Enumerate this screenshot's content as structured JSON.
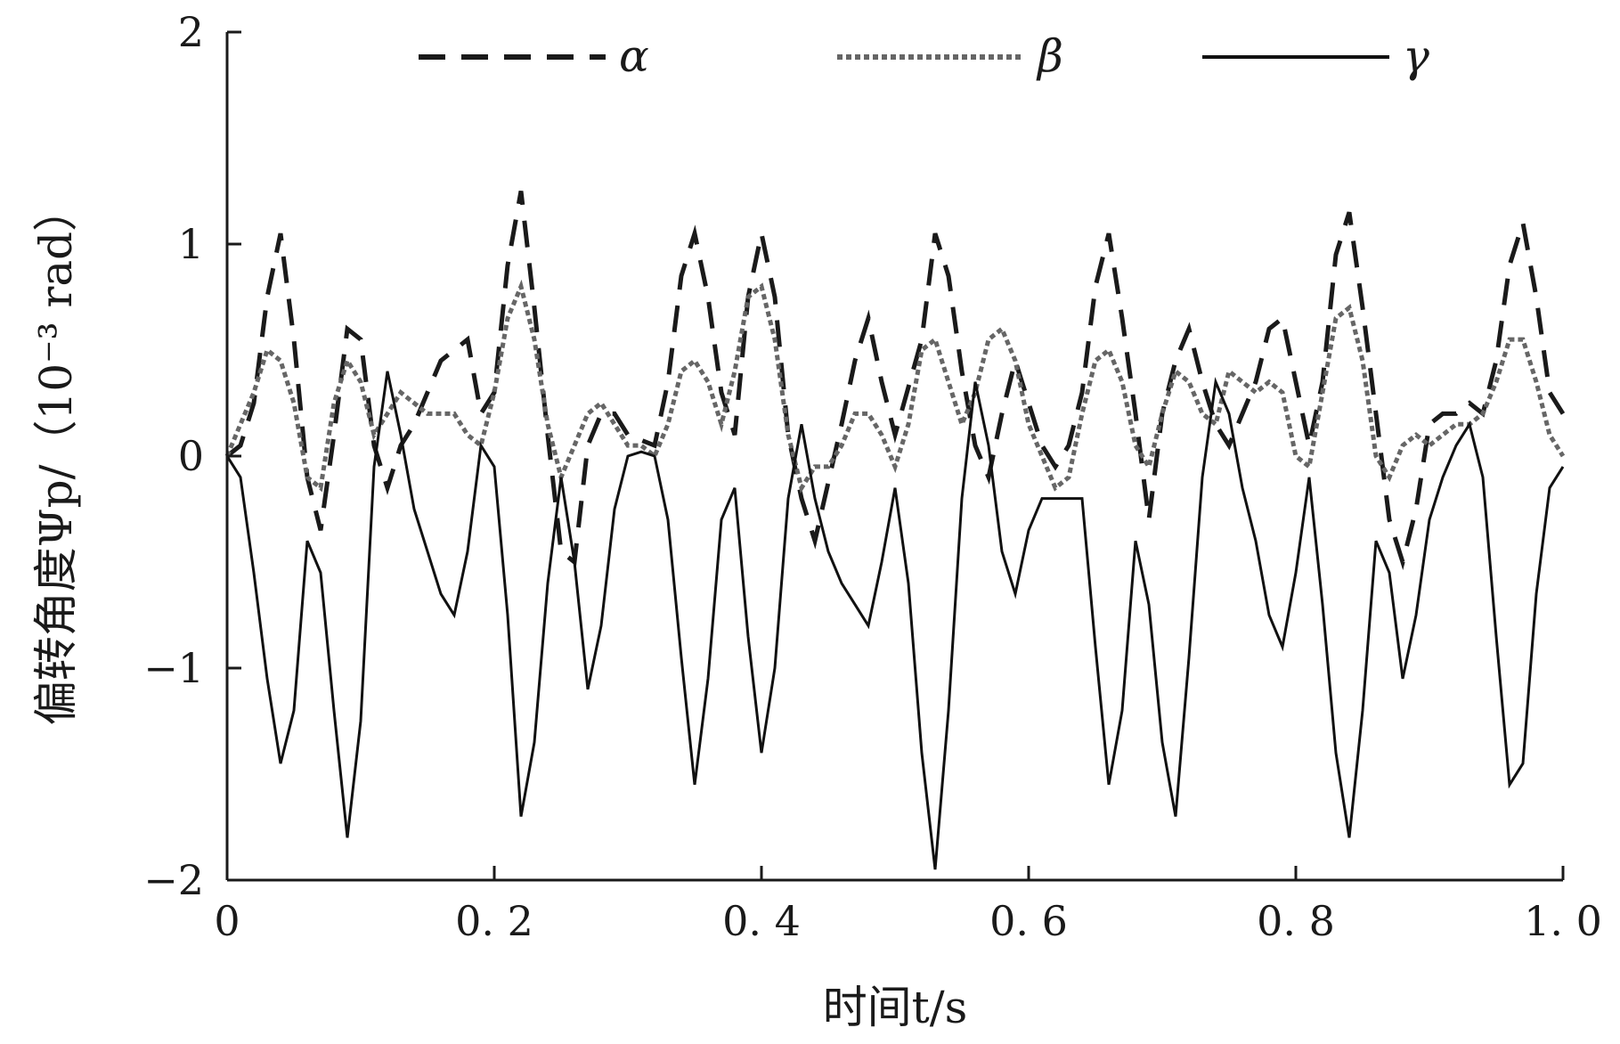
{
  "chart_data": {
    "type": "line",
    "title": "",
    "xlabel": "时间t/s",
    "ylabel": "偏转角度Ψp/（10⁻³ rad）",
    "xlim": [
      0,
      1.0
    ],
    "ylim": [
      -2,
      2
    ],
    "x_ticks": [
      0,
      0.2,
      0.4,
      0.6,
      0.8,
      1.0
    ],
    "x_tick_labels": [
      "0",
      "0. 2",
      "0. 4",
      "0. 6",
      "0. 8",
      "1. 0"
    ],
    "y_ticks": [
      2,
      1,
      0,
      -1,
      -2
    ],
    "y_tick_labels": [
      "2",
      "1",
      "0",
      "−1",
      "−2"
    ],
    "grid": false,
    "legend_position": "top",
    "colors": {
      "axis": "#1a1a1a",
      "alpha": "#1a1a1a",
      "beta": "#666666",
      "gamma": "#111111"
    },
    "series": [
      {
        "name": "α",
        "style": "dashed",
        "points": [
          [
            0,
            0
          ],
          [
            0.01,
            0.05
          ],
          [
            0.02,
            0.25
          ],
          [
            0.03,
            0.75
          ],
          [
            0.04,
            1.05
          ],
          [
            0.05,
            0.55
          ],
          [
            0.06,
            -0.1
          ],
          [
            0.07,
            -0.35
          ],
          [
            0.08,
            0.1
          ],
          [
            0.09,
            0.6
          ],
          [
            0.1,
            0.55
          ],
          [
            0.11,
            0.05
          ],
          [
            0.12,
            -0.15
          ],
          [
            0.13,
            0.05
          ],
          [
            0.14,
            0.15
          ],
          [
            0.16,
            0.45
          ],
          [
            0.18,
            0.55
          ],
          [
            0.19,
            0.2
          ],
          [
            0.2,
            0.3
          ],
          [
            0.21,
            0.9
          ],
          [
            0.22,
            1.25
          ],
          [
            0.23,
            0.7
          ],
          [
            0.24,
            0.1
          ],
          [
            0.25,
            -0.45
          ],
          [
            0.26,
            -0.5
          ],
          [
            0.27,
            0.05
          ],
          [
            0.28,
            0.2
          ],
          [
            0.29,
            0.2
          ],
          [
            0.3,
            0.1
          ],
          [
            0.32,
            0.05
          ],
          [
            0.33,
            0.35
          ],
          [
            0.34,
            0.85
          ],
          [
            0.35,
            1.05
          ],
          [
            0.36,
            0.75
          ],
          [
            0.37,
            0.3
          ],
          [
            0.38,
            0.1
          ],
          [
            0.39,
            0.75
          ],
          [
            0.4,
            1.05
          ],
          [
            0.41,
            0.75
          ],
          [
            0.42,
            0.1
          ],
          [
            0.43,
            -0.2
          ],
          [
            0.44,
            -0.4
          ],
          [
            0.46,
            0.15
          ],
          [
            0.47,
            0.45
          ],
          [
            0.48,
            0.65
          ],
          [
            0.49,
            0.35
          ],
          [
            0.5,
            0.1
          ],
          [
            0.52,
            0.55
          ],
          [
            0.53,
            1.05
          ],
          [
            0.54,
            0.85
          ],
          [
            0.55,
            0.4
          ],
          [
            0.56,
            0.05
          ],
          [
            0.57,
            -0.1
          ],
          [
            0.58,
            0.2
          ],
          [
            0.59,
            0.45
          ],
          [
            0.6,
            0.25
          ],
          [
            0.61,
            0.05
          ],
          [
            0.62,
            -0.05
          ],
          [
            0.63,
            0.05
          ],
          [
            0.64,
            0.3
          ],
          [
            0.65,
            0.8
          ],
          [
            0.66,
            1.05
          ],
          [
            0.67,
            0.65
          ],
          [
            0.68,
            0.2
          ],
          [
            0.69,
            -0.3
          ],
          [
            0.7,
            0.2
          ],
          [
            0.71,
            0.45
          ],
          [
            0.72,
            0.6
          ],
          [
            0.73,
            0.35
          ],
          [
            0.74,
            0.15
          ],
          [
            0.75,
            0.05
          ],
          [
            0.77,
            0.35
          ],
          [
            0.78,
            0.6
          ],
          [
            0.79,
            0.65
          ],
          [
            0.8,
            0.35
          ],
          [
            0.81,
            0.05
          ],
          [
            0.82,
            0.35
          ],
          [
            0.83,
            0.95
          ],
          [
            0.84,
            1.15
          ],
          [
            0.85,
            0.7
          ],
          [
            0.86,
            0.2
          ],
          [
            0.87,
            -0.3
          ],
          [
            0.88,
            -0.5
          ],
          [
            0.89,
            -0.25
          ],
          [
            0.9,
            0.15
          ],
          [
            0.91,
            0.2
          ],
          [
            0.92,
            0.2
          ],
          [
            0.93,
            0.25
          ],
          [
            0.94,
            0.2
          ],
          [
            0.95,
            0.45
          ],
          [
            0.96,
            0.9
          ],
          [
            0.97,
            1.1
          ],
          [
            0.98,
            0.75
          ],
          [
            0.99,
            0.3
          ],
          [
            1.0,
            0.2
          ]
        ]
      },
      {
        "name": "β",
        "style": "dotted",
        "points": [
          [
            0,
            0
          ],
          [
            0.01,
            0.15
          ],
          [
            0.02,
            0.3
          ],
          [
            0.03,
            0.5
          ],
          [
            0.04,
            0.45
          ],
          [
            0.05,
            0.25
          ],
          [
            0.06,
            -0.1
          ],
          [
            0.07,
            -0.15
          ],
          [
            0.08,
            0.25
          ],
          [
            0.09,
            0.45
          ],
          [
            0.1,
            0.35
          ],
          [
            0.11,
            0.1
          ],
          [
            0.12,
            0.2
          ],
          [
            0.13,
            0.3
          ],
          [
            0.14,
            0.25
          ],
          [
            0.15,
            0.2
          ],
          [
            0.17,
            0.2
          ],
          [
            0.18,
            0.1
          ],
          [
            0.19,
            0.05
          ],
          [
            0.2,
            0.3
          ],
          [
            0.21,
            0.65
          ],
          [
            0.22,
            0.8
          ],
          [
            0.23,
            0.55
          ],
          [
            0.24,
            0.15
          ],
          [
            0.25,
            -0.1
          ],
          [
            0.26,
            0.05
          ],
          [
            0.27,
            0.2
          ],
          [
            0.28,
            0.25
          ],
          [
            0.29,
            0.15
          ],
          [
            0.3,
            0.05
          ],
          [
            0.31,
            0.05
          ],
          [
            0.32,
            0.0
          ],
          [
            0.33,
            0.15
          ],
          [
            0.34,
            0.4
          ],
          [
            0.35,
            0.45
          ],
          [
            0.36,
            0.35
          ],
          [
            0.37,
            0.15
          ],
          [
            0.38,
            0.4
          ],
          [
            0.39,
            0.75
          ],
          [
            0.4,
            0.8
          ],
          [
            0.41,
            0.55
          ],
          [
            0.42,
            0.1
          ],
          [
            0.43,
            -0.15
          ],
          [
            0.44,
            -0.05
          ],
          [
            0.45,
            -0.05
          ],
          [
            0.46,
            0.05
          ],
          [
            0.47,
            0.2
          ],
          [
            0.48,
            0.2
          ],
          [
            0.49,
            0.1
          ],
          [
            0.5,
            -0.05
          ],
          [
            0.51,
            0.15
          ],
          [
            0.52,
            0.5
          ],
          [
            0.53,
            0.55
          ],
          [
            0.54,
            0.35
          ],
          [
            0.55,
            0.15
          ],
          [
            0.56,
            0.3
          ],
          [
            0.57,
            0.55
          ],
          [
            0.58,
            0.6
          ],
          [
            0.59,
            0.45
          ],
          [
            0.6,
            0.15
          ],
          [
            0.61,
            0.0
          ],
          [
            0.62,
            -0.15
          ],
          [
            0.63,
            -0.1
          ],
          [
            0.64,
            0.2
          ],
          [
            0.65,
            0.45
          ],
          [
            0.66,
            0.5
          ],
          [
            0.67,
            0.35
          ],
          [
            0.68,
            0.05
          ],
          [
            0.69,
            -0.05
          ],
          [
            0.7,
            0.2
          ],
          [
            0.71,
            0.4
          ],
          [
            0.72,
            0.35
          ],
          [
            0.73,
            0.2
          ],
          [
            0.74,
            0.15
          ],
          [
            0.75,
            0.4
          ],
          [
            0.76,
            0.35
          ],
          [
            0.77,
            0.3
          ],
          [
            0.78,
            0.35
          ],
          [
            0.79,
            0.3
          ],
          [
            0.8,
            0.0
          ],
          [
            0.81,
            -0.05
          ],
          [
            0.82,
            0.3
          ],
          [
            0.83,
            0.65
          ],
          [
            0.84,
            0.7
          ],
          [
            0.85,
            0.45
          ],
          [
            0.86,
            0.0
          ],
          [
            0.87,
            -0.1
          ],
          [
            0.88,
            0.05
          ],
          [
            0.89,
            0.1
          ],
          [
            0.9,
            0.05
          ],
          [
            0.91,
            0.1
          ],
          [
            0.92,
            0.15
          ],
          [
            0.93,
            0.15
          ],
          [
            0.94,
            0.2
          ],
          [
            0.95,
            0.35
          ],
          [
            0.96,
            0.55
          ],
          [
            0.97,
            0.55
          ],
          [
            0.98,
            0.35
          ],
          [
            0.99,
            0.1
          ],
          [
            1.0,
            0.0
          ]
        ]
      },
      {
        "name": "γ",
        "style": "solid",
        "points": [
          [
            0,
            0
          ],
          [
            0.01,
            -0.1
          ],
          [
            0.02,
            -0.55
          ],
          [
            0.03,
            -1.05
          ],
          [
            0.04,
            -1.45
          ],
          [
            0.05,
            -1.2
          ],
          [
            0.06,
            -0.4
          ],
          [
            0.07,
            -0.55
          ],
          [
            0.08,
            -1.2
          ],
          [
            0.09,
            -1.8
          ],
          [
            0.1,
            -1.25
          ],
          [
            0.11,
            -0.05
          ],
          [
            0.12,
            0.4
          ],
          [
            0.13,
            0.1
          ],
          [
            0.14,
            -0.25
          ],
          [
            0.15,
            -0.45
          ],
          [
            0.16,
            -0.65
          ],
          [
            0.17,
            -0.75
          ],
          [
            0.18,
            -0.45
          ],
          [
            0.19,
            0.05
          ],
          [
            0.2,
            -0.05
          ],
          [
            0.21,
            -0.75
          ],
          [
            0.22,
            -1.7
          ],
          [
            0.23,
            -1.35
          ],
          [
            0.24,
            -0.6
          ],
          [
            0.25,
            -0.1
          ],
          [
            0.26,
            -0.5
          ],
          [
            0.27,
            -1.1
          ],
          [
            0.28,
            -0.8
          ],
          [
            0.29,
            -0.25
          ],
          [
            0.3,
            0.0
          ],
          [
            0.31,
            0.02
          ],
          [
            0.32,
            0.0
          ],
          [
            0.33,
            -0.3
          ],
          [
            0.34,
            -0.95
          ],
          [
            0.35,
            -1.55
          ],
          [
            0.36,
            -1.05
          ],
          [
            0.37,
            -0.3
          ],
          [
            0.38,
            -0.15
          ],
          [
            0.39,
            -0.85
          ],
          [
            0.4,
            -1.4
          ],
          [
            0.41,
            -1.0
          ],
          [
            0.42,
            -0.2
          ],
          [
            0.43,
            0.15
          ],
          [
            0.44,
            -0.2
          ],
          [
            0.45,
            -0.45
          ],
          [
            0.46,
            -0.6
          ],
          [
            0.47,
            -0.7
          ],
          [
            0.48,
            -0.8
          ],
          [
            0.49,
            -0.5
          ],
          [
            0.5,
            -0.15
          ],
          [
            0.51,
            -0.6
          ],
          [
            0.52,
            -1.4
          ],
          [
            0.53,
            -1.95
          ],
          [
            0.54,
            -1.2
          ],
          [
            0.55,
            -0.2
          ],
          [
            0.56,
            0.35
          ],
          [
            0.57,
            0.05
          ],
          [
            0.58,
            -0.45
          ],
          [
            0.59,
            -0.65
          ],
          [
            0.6,
            -0.35
          ],
          [
            0.61,
            -0.2
          ],
          [
            0.62,
            -0.2
          ],
          [
            0.63,
            -0.2
          ],
          [
            0.64,
            -0.2
          ],
          [
            0.65,
            -0.9
          ],
          [
            0.66,
            -1.55
          ],
          [
            0.67,
            -1.2
          ],
          [
            0.68,
            -0.4
          ],
          [
            0.69,
            -0.7
          ],
          [
            0.7,
            -1.35
          ],
          [
            0.71,
            -1.7
          ],
          [
            0.72,
            -0.95
          ],
          [
            0.73,
            -0.1
          ],
          [
            0.74,
            0.35
          ],
          [
            0.75,
            0.2
          ],
          [
            0.76,
            -0.15
          ],
          [
            0.77,
            -0.4
          ],
          [
            0.78,
            -0.75
          ],
          [
            0.79,
            -0.9
          ],
          [
            0.8,
            -0.55
          ],
          [
            0.81,
            -0.1
          ],
          [
            0.82,
            -0.7
          ],
          [
            0.83,
            -1.4
          ],
          [
            0.84,
            -1.8
          ],
          [
            0.85,
            -1.2
          ],
          [
            0.86,
            -0.4
          ],
          [
            0.87,
            -0.55
          ],
          [
            0.88,
            -1.05
          ],
          [
            0.89,
            -0.75
          ],
          [
            0.9,
            -0.3
          ],
          [
            0.91,
            -0.1
          ],
          [
            0.92,
            0.05
          ],
          [
            0.93,
            0.15
          ],
          [
            0.94,
            -0.1
          ],
          [
            0.95,
            -0.85
          ],
          [
            0.96,
            -1.55
          ],
          [
            0.97,
            -1.45
          ],
          [
            0.98,
            -0.65
          ],
          [
            0.99,
            -0.15
          ],
          [
            1.0,
            -0.05
          ]
        ]
      }
    ]
  }
}
